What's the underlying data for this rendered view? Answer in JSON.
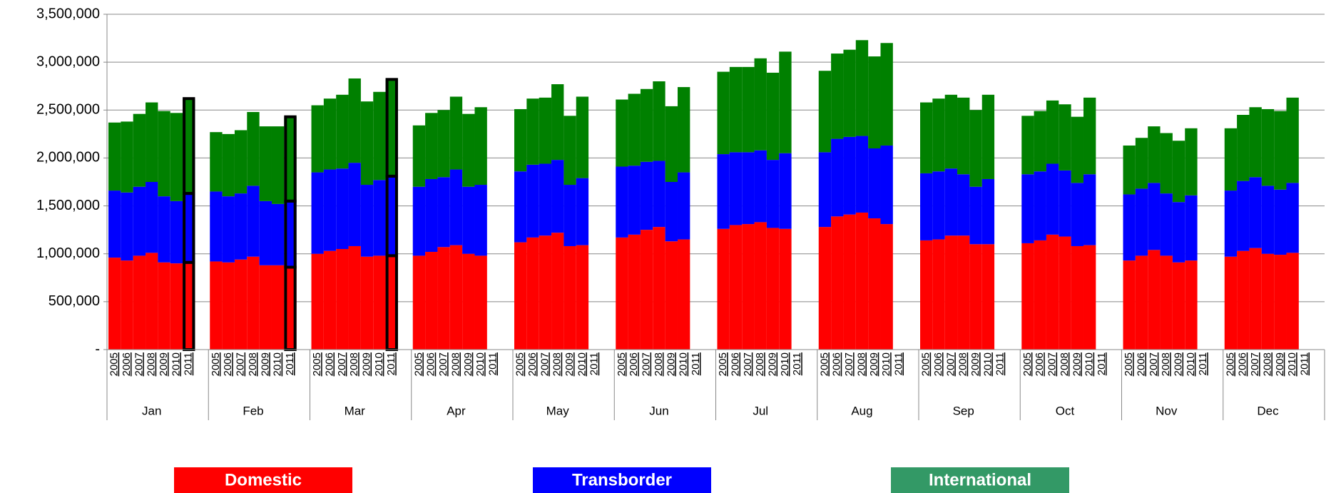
{
  "chart_data": {
    "type": "stacked_bar",
    "groups": [
      "Jan",
      "Feb",
      "Mar",
      "Apr",
      "May",
      "Jun",
      "Jul",
      "Aug",
      "Sep",
      "Oct",
      "Nov",
      "Dec"
    ],
    "categories": [
      "2005",
      "2006",
      "2007",
      "2008",
      "2009",
      "2010",
      "2011",
      "2005",
      "2006",
      "2007",
      "2008",
      "2009",
      "2010",
      "2011",
      "2005",
      "2006",
      "2007",
      "2008",
      "2009",
      "2010",
      "2011",
      "2005",
      "2006",
      "2007",
      "2008",
      "2009",
      "2010",
      "2011",
      "2005",
      "2006",
      "2007",
      "2008",
      "2009",
      "2010",
      "2011",
      "2005",
      "2006",
      "2007",
      "2008",
      "2009",
      "2010",
      "2011",
      "2005",
      "2006",
      "2007",
      "2008",
      "2009",
      "2010",
      "2011",
      "2005",
      "2006",
      "2007",
      "2008",
      "2009",
      "2010",
      "2011",
      "2005",
      "2006",
      "2007",
      "2008",
      "2009",
      "2010",
      "2011",
      "2005",
      "2006",
      "2007",
      "2008",
      "2009",
      "2010",
      "2011",
      "2005",
      "2006",
      "2007",
      "2008",
      "2009",
      "2010",
      "2011",
      "2005",
      "2006",
      "2007",
      "2008",
      "2009",
      "2010",
      "2011"
    ],
    "series": [
      {
        "name": "Domestic",
        "color": "#ff0000",
        "legend_color": "#ff0000",
        "values": [
          960000,
          930000,
          980000,
          1010000,
          910000,
          900000,
          910000,
          920000,
          910000,
          940000,
          970000,
          880000,
          880000,
          860000,
          1000000,
          1030000,
          1050000,
          1080000,
          970000,
          980000,
          980000,
          980000,
          1020000,
          1070000,
          1090000,
          1000000,
          980000,
          null,
          1120000,
          1170000,
          1190000,
          1220000,
          1080000,
          1090000,
          null,
          1170000,
          1200000,
          1250000,
          1280000,
          1130000,
          1150000,
          null,
          1260000,
          1300000,
          1310000,
          1330000,
          1270000,
          1260000,
          null,
          1280000,
          1390000,
          1410000,
          1430000,
          1370000,
          1310000,
          null,
          1140000,
          1150000,
          1190000,
          1190000,
          1100000,
          1100000,
          null,
          1110000,
          1140000,
          1200000,
          1180000,
          1080000,
          1090000,
          null,
          930000,
          980000,
          1040000,
          980000,
          910000,
          930000,
          null,
          970000,
          1030000,
          1060000,
          1000000,
          990000,
          1010000,
          null
        ]
      },
      {
        "name": "Transborder",
        "color": "#0000ff",
        "legend_color": "#0000ff",
        "values": [
          700000,
          710000,
          720000,
          740000,
          690000,
          650000,
          720000,
          730000,
          690000,
          690000,
          740000,
          670000,
          640000,
          690000,
          850000,
          850000,
          840000,
          870000,
          750000,
          790000,
          830000,
          720000,
          760000,
          730000,
          790000,
          700000,
          740000,
          null,
          740000,
          760000,
          750000,
          760000,
          640000,
          700000,
          null,
          740000,
          720000,
          710000,
          690000,
          620000,
          700000,
          null,
          780000,
          760000,
          750000,
          750000,
          710000,
          790000,
          null,
          780000,
          810000,
          810000,
          800000,
          730000,
          820000,
          null,
          700000,
          710000,
          700000,
          640000,
          600000,
          680000,
          null,
          720000,
          720000,
          740000,
          690000,
          660000,
          740000,
          null,
          690000,
          700000,
          700000,
          650000,
          630000,
          680000,
          null,
          690000,
          730000,
          740000,
          710000,
          680000,
          730000,
          null
        ]
      },
      {
        "name": "International",
        "color": "#008000",
        "legend_color": "#339966",
        "values": [
          710000,
          740000,
          760000,
          830000,
          890000,
          920000,
          990000,
          620000,
          650000,
          660000,
          770000,
          780000,
          810000,
          880000,
          700000,
          740000,
          770000,
          880000,
          870000,
          920000,
          1010000,
          640000,
          690000,
          700000,
          760000,
          760000,
          810000,
          null,
          650000,
          690000,
          690000,
          790000,
          720000,
          850000,
          null,
          700000,
          750000,
          760000,
          830000,
          790000,
          890000,
          null,
          860000,
          890000,
          890000,
          960000,
          910000,
          1060000,
          null,
          850000,
          890000,
          910000,
          1000000,
          960000,
          1070000,
          null,
          740000,
          760000,
          770000,
          800000,
          800000,
          880000,
          null,
          610000,
          630000,
          660000,
          690000,
          690000,
          800000,
          null,
          510000,
          530000,
          590000,
          630000,
          640000,
          700000,
          null,
          650000,
          690000,
          730000,
          800000,
          820000,
          890000,
          null
        ]
      }
    ],
    "ylim": [
      0,
      3500000
    ],
    "yticks": [
      {
        "value": 0,
        "label": "-"
      },
      {
        "value": 500000,
        "label": "500,000"
      },
      {
        "value": 1000000,
        "label": "1,000,000"
      },
      {
        "value": 1500000,
        "label": "1,500,000"
      },
      {
        "value": 2000000,
        "label": "2,000,000"
      },
      {
        "value": 2500000,
        "label": "2,500,000"
      },
      {
        "value": 3000000,
        "label": "3,000,000"
      },
      {
        "value": 3500000,
        "label": "3,500,000"
      }
    ],
    "grid": true
  }
}
